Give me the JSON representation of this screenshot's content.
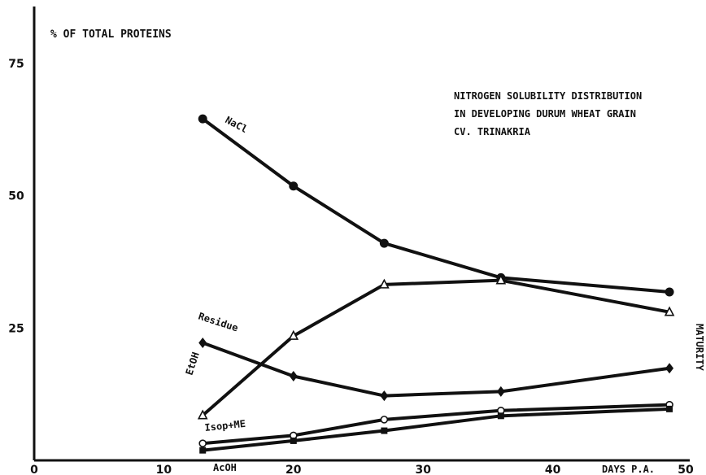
{
  "chart_data": {
    "type": "line",
    "title": "NITROGEN SOLUBILITY DISTRIBUTION\nIN DEVELOPING DURUM WHEAT GRAIN\nCV. TRINAKRIA",
    "title_lines": [
      "NITROGEN SOLUBILITY DISTRIBUTION",
      "IN DEVELOPING DURUM WHEAT GRAIN",
      "CV. TRINAKRIA"
    ],
    "ylabel": "% OF TOTAL PROTEINS",
    "xlabel": "DAYS P.A.",
    "maturity_label": "MATURITY",
    "xlim": [
      0,
      50
    ],
    "ylim": [
      0,
      85
    ],
    "x_ticks": [
      0,
      10,
      20,
      30,
      40,
      50
    ],
    "y_ticks": [
      25,
      50,
      75
    ],
    "grid": false,
    "legend": "none (series labeled directly on lines)",
    "x": [
      13,
      20,
      27,
      36,
      49
    ],
    "series": [
      {
        "name": "NaCl",
        "marker": "filled-circle",
        "values": [
          64.5,
          51.8,
          41,
          34.5,
          31.8
        ]
      },
      {
        "name": "EtOH",
        "marker": "open-triangle",
        "values": [
          8.5,
          23.5,
          33.2,
          34,
          28
        ]
      },
      {
        "name": "Residue",
        "marker": "filled-diamond",
        "values": [
          22.2,
          15.9,
          12.2,
          13,
          17.4
        ]
      },
      {
        "name": "Isop+ME",
        "marker": "open-circle",
        "values": [
          3.2,
          4.7,
          7.7,
          9.4,
          10.5
        ]
      },
      {
        "name": "AcOH",
        "marker": "filled-square",
        "values": [
          1.9,
          3.7,
          5.6,
          8.4,
          9.7
        ]
      }
    ]
  }
}
